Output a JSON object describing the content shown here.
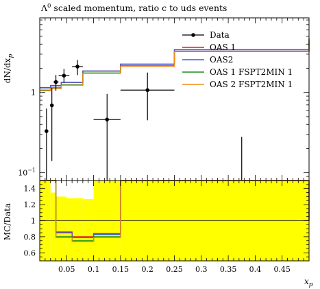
{
  "chart_data": {
    "type": "line",
    "title": "Λ⁰ scaled momentum, ratio c to uds events",
    "title_symbol": "Λ",
    "title_superscript": "0",
    "title_rest": " scaled momentum, ratio c to uds events",
    "xlabel": "x",
    "xlabel_sub": "p",
    "ylabel_main": "dN/dx",
    "ylabel_main_sub": "p",
    "ylabel_ratio": "MC/Data",
    "xlim": [
      0.0,
      0.5
    ],
    "main_ylim": [
      0.08,
      8.5
    ],
    "main_yscale": "log",
    "ratio_ylim": [
      0.5,
      1.5
    ],
    "legend_position": "top-right",
    "grid": false,
    "bin_edges": [
      0.0,
      0.01,
      0.02,
      0.03,
      0.04,
      0.06,
      0.08,
      0.1,
      0.15,
      0.25,
      0.5
    ],
    "data": {
      "name": "Data",
      "x": [
        0.0125,
        0.0225,
        0.03,
        0.045,
        0.07,
        0.125,
        0.2,
        0.375
      ],
      "y": [
        0.33,
        0.69,
        1.35,
        1.62,
        2.1,
        0.46,
        1.07,
        0.0
      ],
      "yerr_lo": [
        0.26,
        0.55,
        0.3,
        0.3,
        0.45,
        0.46,
        0.62,
        0.0
      ],
      "yerr_hi": [
        0.3,
        0.45,
        0.3,
        0.35,
        0.45,
        0.5,
        0.7,
        0.28
      ],
      "xerr": [
        0.0025,
        0.0025,
        0.005,
        0.01,
        0.01,
        0.025,
        0.05,
        0.125
      ]
    },
    "series": [
      {
        "name": "OAS 1",
        "color": "#d42020",
        "values": [
          1.15,
          1.15,
          1.22,
          1.22,
          1.34,
          1.34,
          1.85,
          1.85,
          2.25,
          3.4,
          4.7
        ]
      },
      {
        "name": "OAS2",
        "color": "#3a5bd9",
        "values": [
          1.14,
          1.14,
          1.21,
          1.21,
          1.33,
          1.33,
          1.85,
          1.85,
          2.25,
          3.4,
          4.7
        ]
      },
      {
        "name": "OAS 1 FSPT2MIN 1",
        "color": "#1a8a1a",
        "values": [
          1.07,
          1.07,
          1.14,
          1.14,
          1.25,
          1.25,
          1.75,
          1.75,
          2.15,
          3.25,
          4.45
        ]
      },
      {
        "name": "OAS 2 FSPT2MIN 1",
        "color": "#f08a18",
        "values": [
          1.05,
          1.05,
          1.12,
          1.12,
          1.23,
          1.23,
          1.73,
          1.73,
          2.12,
          3.22,
          4.42
        ]
      }
    ],
    "ratio_series": [
      {
        "name": "OAS 1",
        "color": "#d42020",
        "values": [
          1.5,
          1.5,
          1.5,
          0.86,
          0.86,
          0.8,
          0.8,
          0.84,
          1.5,
          1.5,
          1.0
        ]
      },
      {
        "name": "OAS2",
        "color": "#3a5bd9",
        "values": [
          1.5,
          1.5,
          1.5,
          0.85,
          0.85,
          0.79,
          0.79,
          0.83,
          1.5,
          1.5,
          1.0
        ]
      },
      {
        "name": "OAS 1 FSPT2MIN 1",
        "color": "#1a8a1a",
        "values": [
          1.5,
          1.5,
          1.5,
          0.8,
          0.8,
          0.75,
          0.75,
          0.8,
          1.5,
          1.5,
          1.0
        ]
      },
      {
        "name": "OAS 2 FSPT2MIN 1",
        "color": "#f08a18",
        "values": [
          1.5,
          1.5,
          1.5,
          0.79,
          0.79,
          0.74,
          0.74,
          0.79,
          1.5,
          1.5,
          1.0
        ]
      }
    ],
    "ratio_band": {
      "color": "#ffff00",
      "bins": [
        {
          "x0": 0.0,
          "x1": 0.01,
          "lo": 0.5,
          "hi": 1.5
        },
        {
          "x0": 0.01,
          "x1": 0.02,
          "lo": 0.5,
          "hi": 1.5
        },
        {
          "x0": 0.02,
          "x1": 0.03,
          "lo": 0.5,
          "hi": 1.35
        },
        {
          "x0": 0.03,
          "x1": 0.05,
          "lo": 0.5,
          "hi": 1.3
        },
        {
          "x0": 0.05,
          "x1": 0.08,
          "lo": 0.5,
          "hi": 1.28
        },
        {
          "x0": 0.08,
          "x1": 0.1,
          "lo": 0.5,
          "hi": 1.27
        },
        {
          "x0": 0.1,
          "x1": 0.15,
          "lo": 0.5,
          "hi": 1.5
        },
        {
          "x0": 0.15,
          "x1": 0.25,
          "lo": 0.5,
          "hi": 1.5
        },
        {
          "x0": 0.25,
          "x1": 0.5,
          "lo": 0.5,
          "hi": 1.5
        }
      ]
    },
    "x_ticks": [
      {
        "v": 0.05,
        "label": "0.05"
      },
      {
        "v": 0.1,
        "label": "0.1"
      },
      {
        "v": 0.15,
        "label": "0.15"
      },
      {
        "v": 0.2,
        "label": "0.2"
      },
      {
        "v": 0.25,
        "label": "0.25"
      },
      {
        "v": 0.3,
        "label": "0.3"
      },
      {
        "v": 0.35,
        "label": "0.35"
      },
      {
        "v": 0.4,
        "label": "0.4"
      },
      {
        "v": 0.45,
        "label": "0.45"
      }
    ],
    "main_y_ticks": [
      {
        "v": 0.1,
        "label_base": "10",
        "label_exp": "−1"
      },
      {
        "v": 1,
        "label_base": "1",
        "label_exp": ""
      }
    ],
    "ratio_y_ticks": [
      {
        "v": 0.6,
        "label": "0.6"
      },
      {
        "v": 0.8,
        "label": "0.8"
      },
      {
        "v": 1.0,
        "label": "1"
      },
      {
        "v": 1.2,
        "label": "1.2"
      },
      {
        "v": 1.4,
        "label": "1.4"
      }
    ]
  }
}
